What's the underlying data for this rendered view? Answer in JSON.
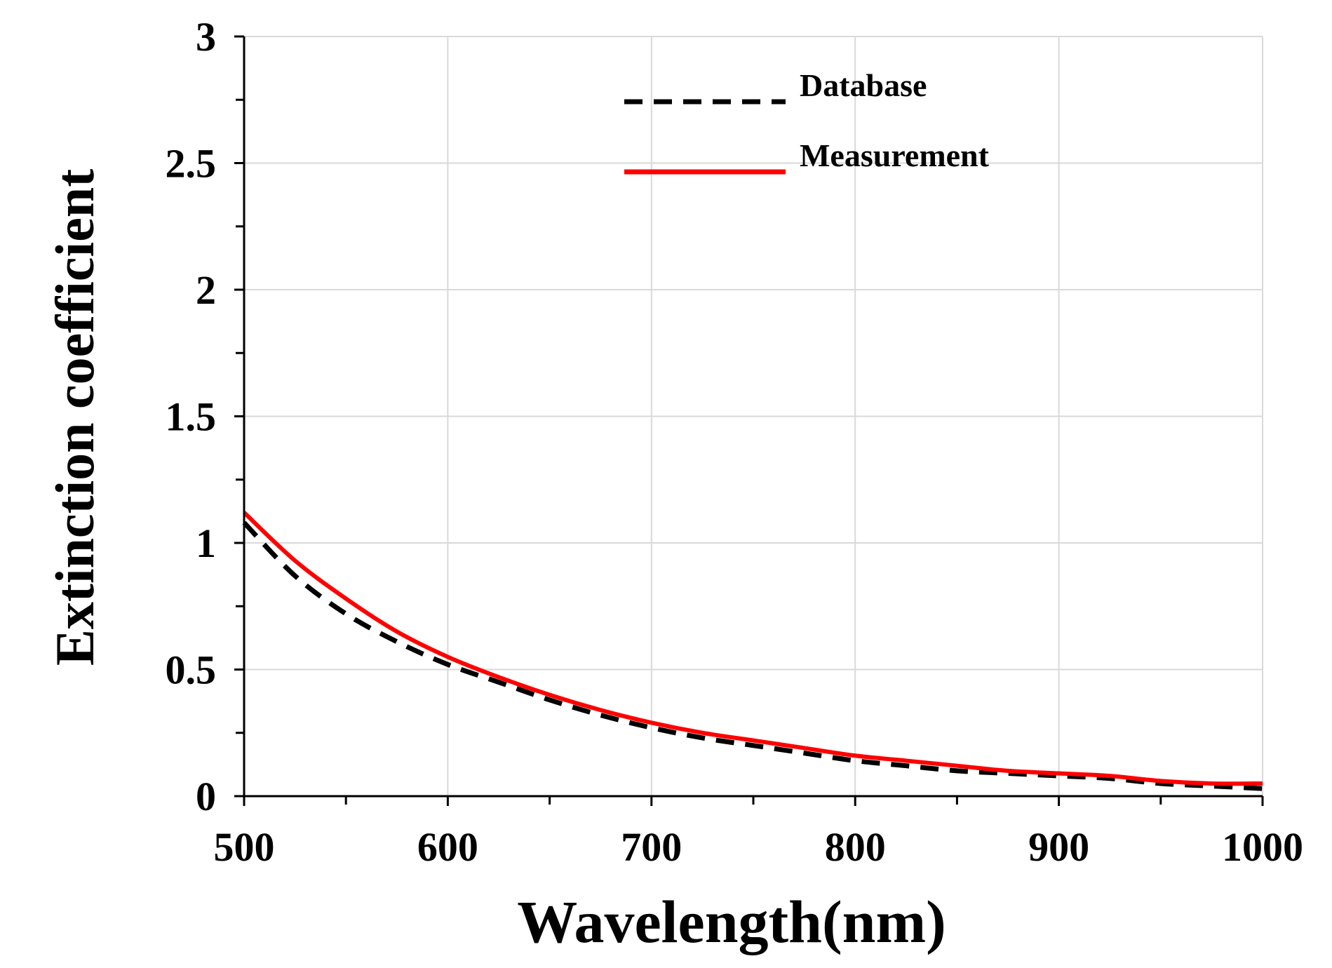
{
  "chart_data": {
    "type": "line",
    "xlabel": "Wavelength(nm)",
    "ylabel": "Extinction coefficient",
    "xlim": [
      500,
      1000
    ],
    "ylim": [
      0,
      3
    ],
    "xticks": [
      "500",
      "600",
      "700",
      "800",
      "900",
      "1000"
    ],
    "yticks": [
      "0",
      "0.5",
      "1",
      "1.5",
      "2",
      "2.5",
      "3"
    ],
    "grid": true,
    "legend_position": "top-center",
    "x": [
      500,
      525,
      550,
      575,
      600,
      625,
      650,
      675,
      700,
      725,
      750,
      775,
      800,
      825,
      850,
      875,
      900,
      925,
      950,
      975,
      1000
    ],
    "series": [
      {
        "name": "Database",
        "color": "#000000",
        "style": "dashed",
        "values": [
          1.08,
          0.87,
          0.72,
          0.61,
          0.52,
          0.45,
          0.38,
          0.32,
          0.27,
          0.23,
          0.2,
          0.17,
          0.14,
          0.12,
          0.1,
          0.09,
          0.08,
          0.07,
          0.05,
          0.04,
          0.03
        ]
      },
      {
        "name": "Measurement",
        "color": "#ff0000",
        "style": "solid",
        "values": [
          1.12,
          0.93,
          0.78,
          0.65,
          0.55,
          0.47,
          0.4,
          0.34,
          0.29,
          0.25,
          0.22,
          0.19,
          0.16,
          0.14,
          0.12,
          0.1,
          0.09,
          0.08,
          0.06,
          0.05,
          0.05
        ]
      }
    ]
  }
}
